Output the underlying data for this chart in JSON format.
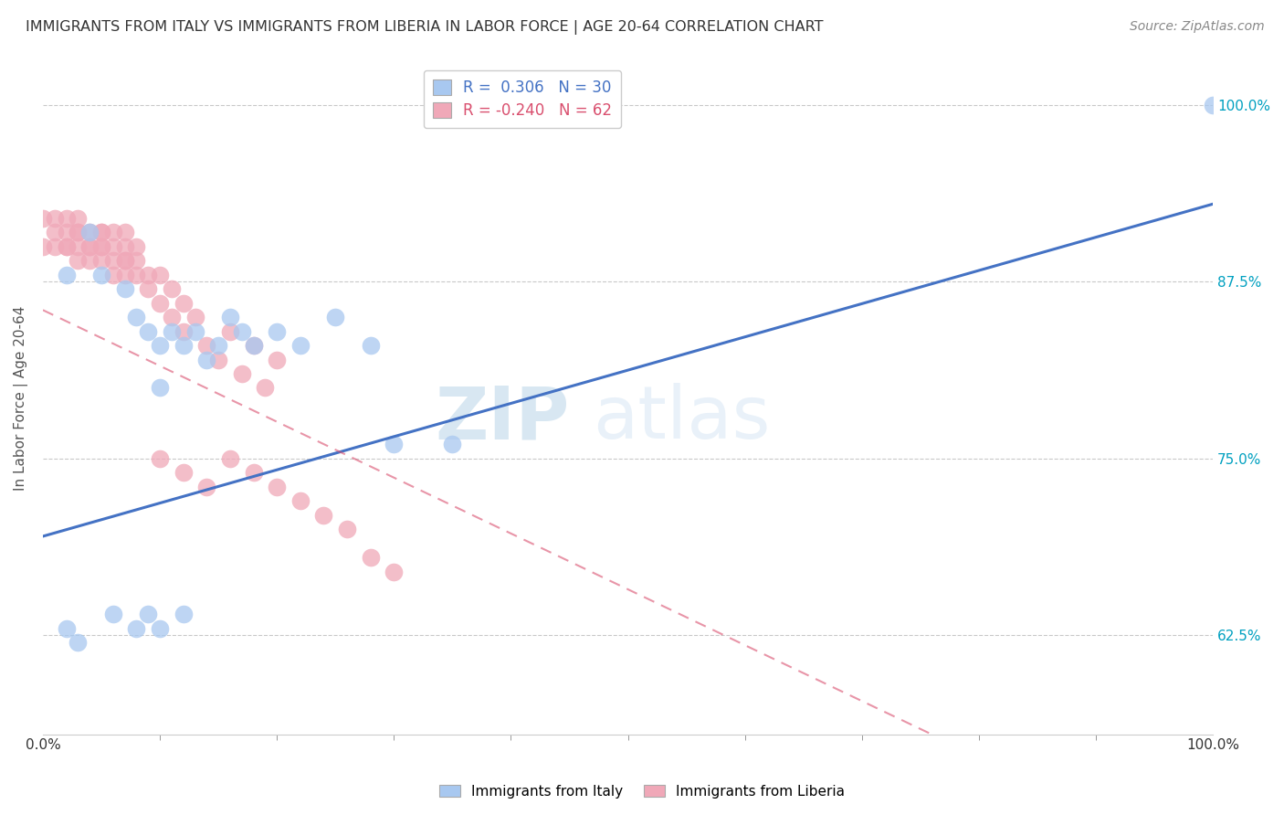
{
  "title": "IMMIGRANTS FROM ITALY VS IMMIGRANTS FROM LIBERIA IN LABOR FORCE | AGE 20-64 CORRELATION CHART",
  "source": "Source: ZipAtlas.com",
  "ylabel": "In Labor Force | Age 20-64",
  "xlim": [
    0.0,
    1.0
  ],
  "ylim": [
    0.555,
    1.03
  ],
  "y_tick_positions": [
    0.625,
    0.75,
    0.875,
    1.0
  ],
  "y_tick_labels": [
    "62.5%",
    "75.0%",
    "87.5%",
    "100.0%"
  ],
  "legend_italy_r": "0.306",
  "legend_italy_n": "30",
  "legend_liberia_r": "-0.240",
  "legend_liberia_n": "62",
  "italy_color": "#a8c8f0",
  "liberia_color": "#f0a8b8",
  "italy_line_color": "#4472c4",
  "liberia_line_color": "#d94f6e",
  "watermark_zip": "ZIP",
  "watermark_atlas": "atlas",
  "background_color": "#ffffff",
  "italy_x": [
    0.02,
    0.04,
    0.05,
    0.07,
    0.08,
    0.09,
    0.1,
    0.1,
    0.11,
    0.12,
    0.13,
    0.14,
    0.15,
    0.16,
    0.17,
    0.18,
    0.2,
    0.22,
    0.25,
    0.28,
    0.3,
    0.35,
    0.02,
    0.03,
    0.06,
    0.08,
    0.09,
    0.1,
    0.12,
    1.0
  ],
  "italy_y": [
    0.88,
    0.91,
    0.88,
    0.87,
    0.85,
    0.84,
    0.83,
    0.8,
    0.84,
    0.83,
    0.84,
    0.82,
    0.83,
    0.85,
    0.84,
    0.83,
    0.84,
    0.83,
    0.85,
    0.83,
    0.76,
    0.76,
    0.63,
    0.62,
    0.64,
    0.63,
    0.64,
    0.63,
    0.64,
    1.0
  ],
  "liberia_x": [
    0.0,
    0.0,
    0.01,
    0.01,
    0.01,
    0.02,
    0.02,
    0.02,
    0.02,
    0.03,
    0.03,
    0.03,
    0.03,
    0.03,
    0.04,
    0.04,
    0.04,
    0.04,
    0.05,
    0.05,
    0.05,
    0.05,
    0.05,
    0.06,
    0.06,
    0.06,
    0.06,
    0.07,
    0.07,
    0.07,
    0.07,
    0.07,
    0.08,
    0.08,
    0.08,
    0.09,
    0.09,
    0.1,
    0.1,
    0.11,
    0.11,
    0.12,
    0.12,
    0.13,
    0.14,
    0.15,
    0.16,
    0.17,
    0.18,
    0.19,
    0.2,
    0.1,
    0.12,
    0.14,
    0.16,
    0.18,
    0.2,
    0.22,
    0.24,
    0.26,
    0.28,
    0.3
  ],
  "liberia_y": [
    0.9,
    0.92,
    0.9,
    0.91,
    0.92,
    0.9,
    0.91,
    0.92,
    0.9,
    0.89,
    0.91,
    0.9,
    0.92,
    0.91,
    0.9,
    0.89,
    0.91,
    0.9,
    0.9,
    0.91,
    0.9,
    0.89,
    0.91,
    0.89,
    0.9,
    0.88,
    0.91,
    0.89,
    0.9,
    0.88,
    0.89,
    0.91,
    0.88,
    0.89,
    0.9,
    0.88,
    0.87,
    0.86,
    0.88,
    0.85,
    0.87,
    0.84,
    0.86,
    0.85,
    0.83,
    0.82,
    0.84,
    0.81,
    0.83,
    0.8,
    0.82,
    0.75,
    0.74,
    0.73,
    0.75,
    0.74,
    0.73,
    0.72,
    0.71,
    0.7,
    0.68,
    0.67
  ]
}
